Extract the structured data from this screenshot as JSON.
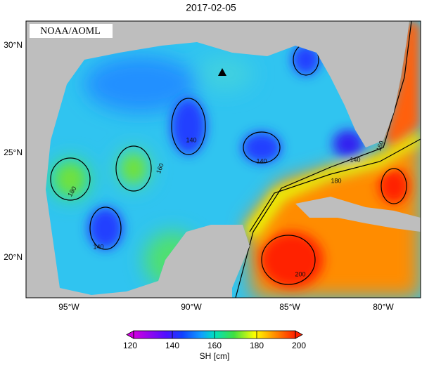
{
  "title": "2017-02-05",
  "credit": "NOAA/AOML",
  "lat_labels": [
    "30°N",
    "25°N",
    "20°N"
  ],
  "lon_labels": [
    "95°W",
    "90°W",
    "85°W",
    "80°W"
  ],
  "contour_labels": [
    "160",
    "140",
    "180",
    "140",
    "140",
    "180",
    "160",
    "140",
    "200"
  ],
  "colorbar": {
    "label": "SH [cm]",
    "range": [
      120,
      200
    ],
    "ticks": [
      120,
      140,
      160,
      180,
      200
    ]
  }
}
